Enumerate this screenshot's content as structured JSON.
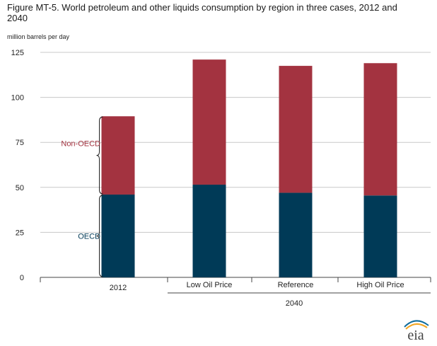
{
  "chart_data": {
    "type": "bar",
    "stacked": true,
    "title": "Figure MT-5. World petroleum and other liquids consumption by region in three cases, 2012 and 2040",
    "ylabel": "million barrels per day",
    "ylim": [
      0,
      125
    ],
    "yticks": [
      0,
      25,
      50,
      75,
      100,
      125
    ],
    "grid": true,
    "categories": [
      "2012",
      "Low Oil Price",
      "Reference",
      "High Oil Price"
    ],
    "category_groups": [
      {
        "label": "2040",
        "categories": [
          "Low Oil Price",
          "Reference",
          "High Oil Price"
        ]
      }
    ],
    "series": [
      {
        "name": "OECD",
        "color": "#003a57",
        "values": [
          46,
          51.5,
          47,
          45.5
        ]
      },
      {
        "name": "Non-OECD",
        "color": "#a33340",
        "values": [
          43.5,
          69.5,
          70.5,
          73.5
        ]
      }
    ],
    "annotations": [
      {
        "text": "Non-OECD",
        "color": "#a33340",
        "series": "Non-OECD"
      },
      {
        "text": "OECD",
        "color": "#003a57",
        "series": "OECD"
      }
    ]
  },
  "logo": {
    "text": "eia",
    "accent": "#f3a521",
    "arc": "#0f6c9c"
  }
}
